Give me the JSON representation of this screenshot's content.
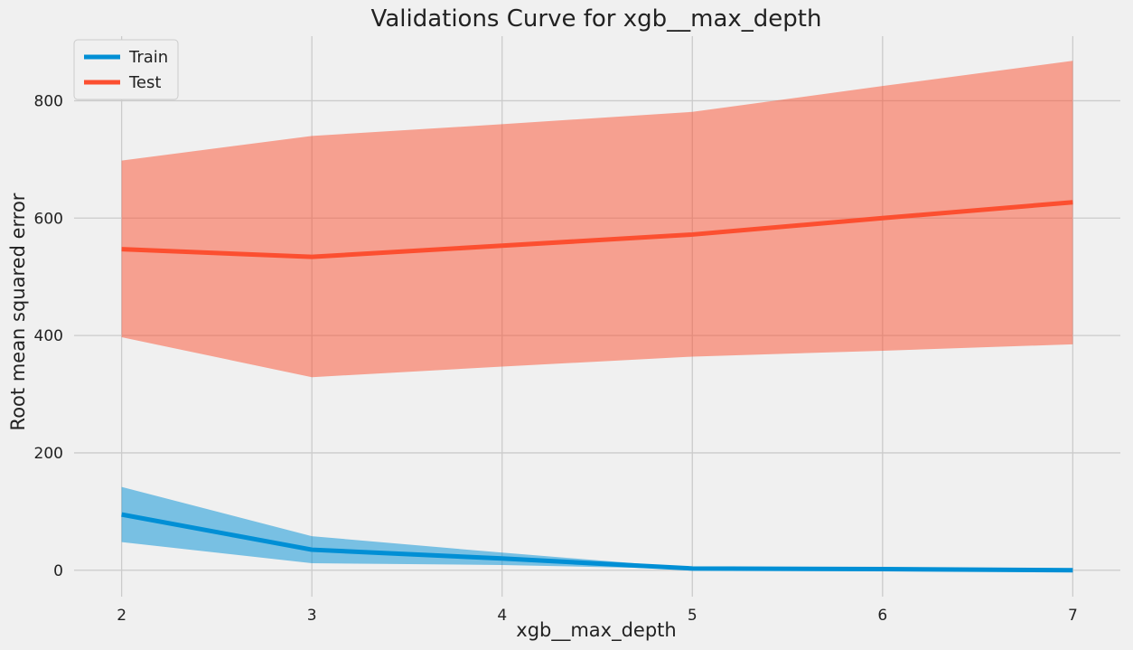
{
  "chart_data": {
    "type": "line",
    "title": "Validations Curve for xgb__max_depth",
    "xlabel": "xgb__max_depth",
    "ylabel": "Root mean squared error",
    "x": [
      2,
      3,
      4,
      5,
      6,
      7
    ],
    "xticks": [
      2,
      3,
      4,
      5,
      6,
      7
    ],
    "yticks": [
      0,
      200,
      400,
      600,
      800
    ],
    "xlim": [
      1.75,
      7.25
    ],
    "ylim": [
      -45,
      910
    ],
    "grid": true,
    "legend_position": "top-left",
    "series": [
      {
        "name": "Train",
        "color": "#008fd5",
        "values": [
          95,
          35,
          20,
          3,
          2,
          0
        ],
        "band_lower": [
          48,
          12,
          9,
          2,
          1,
          0
        ],
        "band_upper": [
          142,
          58,
          30,
          4,
          3,
          0
        ]
      },
      {
        "name": "Test",
        "color": "#fc4f30",
        "values": [
          547,
          534,
          553,
          572,
          600,
          627
        ],
        "band_lower": [
          397,
          329,
          347,
          364,
          374,
          385
        ],
        "band_upper": [
          698,
          740,
          760,
          781,
          825,
          868
        ]
      }
    ]
  }
}
